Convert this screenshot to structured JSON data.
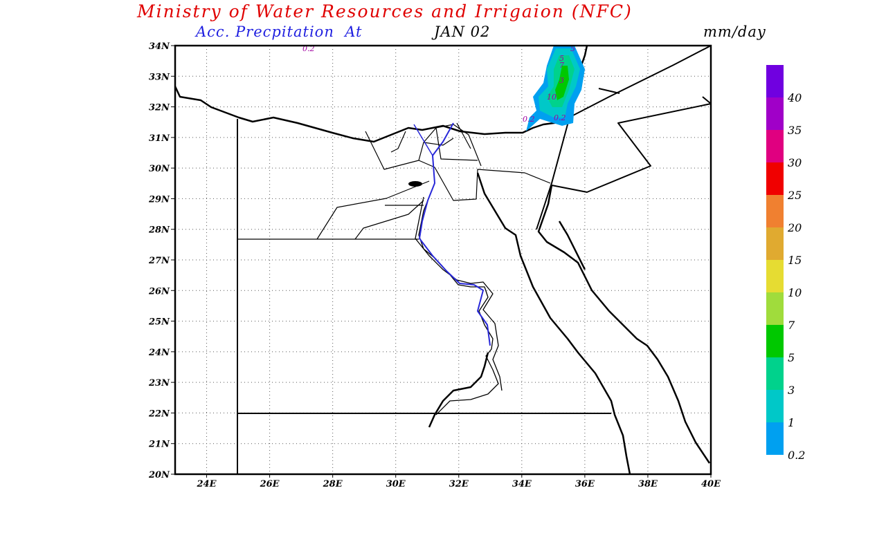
{
  "header": {
    "title": "Ministry of Water Resources and Irrigaion (NFC)",
    "subtitle_variable": "Acc. Precpitation",
    "subtitle_at": "At",
    "subtitle_date": "JAN 02",
    "units": "mm/day"
  },
  "map": {
    "lat_ticks": [
      "34N",
      "33N",
      "32N",
      "31N",
      "30N",
      "29N",
      "28N",
      "27N",
      "26N",
      "25N",
      "24N",
      "23N",
      "22N",
      "21N",
      "20N"
    ],
    "lon_ticks": [
      "24E",
      "26E",
      "28E",
      "30E",
      "32E",
      "34E",
      "36E",
      "38E",
      "40E"
    ],
    "contour_labels": [
      "0.2",
      "0.2",
      "0.2",
      "10",
      "3",
      "7",
      "5",
      "5"
    ],
    "lat_range": [
      20,
      34
    ],
    "lon_range": [
      23,
      40
    ]
  },
  "legend": {
    "labels": [
      "40",
      "35",
      "30",
      "25",
      "20",
      "15",
      "10",
      "7",
      "5",
      "3",
      "1",
      "0.2"
    ],
    "colors": [
      "#7000e0",
      "#a000c8",
      "#e00080",
      "#f00000",
      "#f08030",
      "#e0aa30",
      "#e6dc32",
      "#a0dc3c",
      "#00c800",
      "#00d28c",
      "#00c8c8",
      "#00a0f0",
      "#6400f0"
    ]
  },
  "colors": {
    "title": "#e00000",
    "subtitle": "#2020e0",
    "nile": "#2828d8"
  }
}
